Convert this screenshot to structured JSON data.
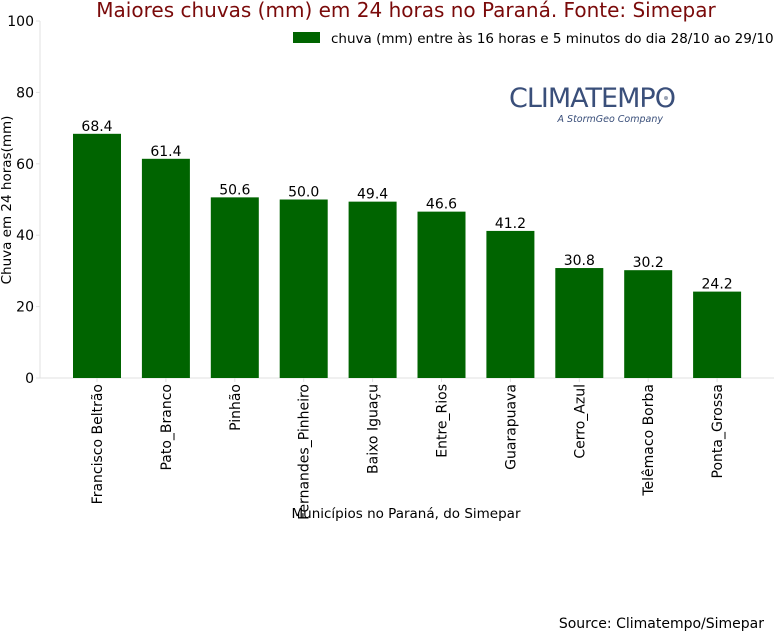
{
  "chart_data": {
    "type": "bar",
    "title": "Maiores chuvas (mm) em 24 horas no Paraná. Fonte: Simepar",
    "xlabel": "Municípios no Paraná, do Simepar",
    "ylabel": "Chuva em 24 horas(mm)",
    "ylim": [
      0,
      100
    ],
    "yticks": [
      0,
      20,
      40,
      60,
      80,
      100
    ],
    "categories": [
      "Francisco Beltrão",
      "Pato_Branco",
      "Pinhão",
      "Fernandes_Pinheiro",
      "Baixo Iguaçu",
      "Entre_Rios",
      "Guarapuava",
      "Cerro_Azul",
      "Telêmaco Borba",
      "Ponta_Grossa"
    ],
    "series": [
      {
        "name": "chuva (mm) entre às 16 horas e 5 minutos do dia 28/10 ao 29/10",
        "values": [
          68.4,
          61.4,
          50.6,
          50.0,
          49.4,
          46.6,
          41.2,
          30.8,
          30.2,
          24.2
        ],
        "value_labels": [
          "68.4",
          "61.4",
          "50.6",
          "50.0",
          "49.4",
          "46.6",
          "41.2",
          "30.8",
          "30.2",
          "24.2"
        ],
        "color": "#006400"
      }
    ],
    "legend_position": "top-right",
    "grid": false
  },
  "logo": {
    "name": "CLIMATEMPO",
    "tagline": "A StormGeo Company",
    "color": "#3a4f7a"
  },
  "source_note": "Source: Climatempo/Simepar"
}
